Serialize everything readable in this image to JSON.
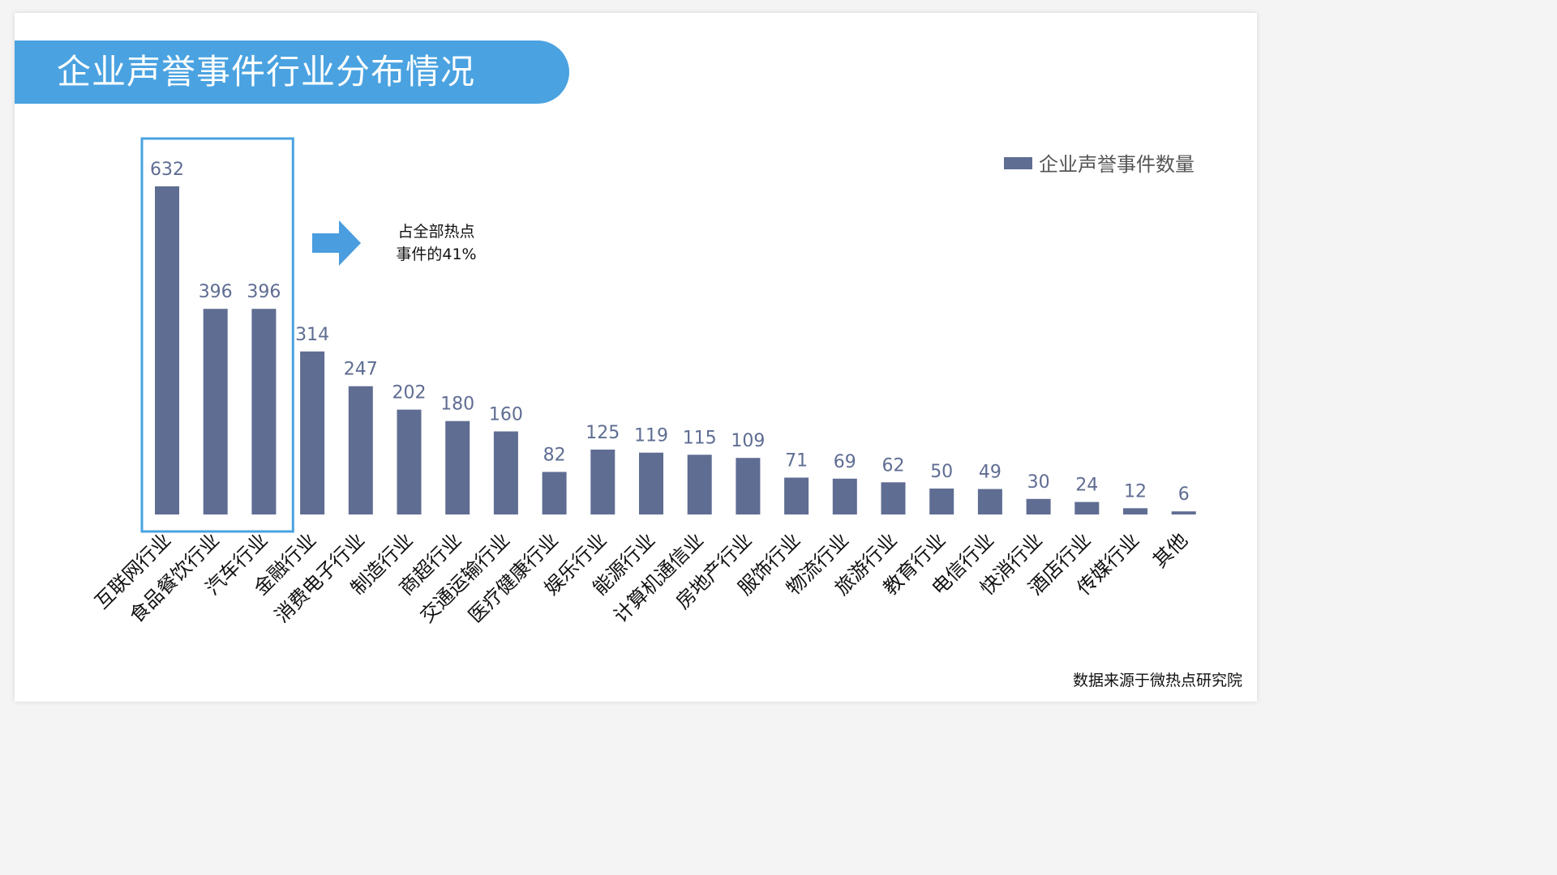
{
  "title": "企业声誉事件行业分布情况",
  "callout": {
    "line1": "占全部热点",
    "line2": "事件的41%"
  },
  "source": "数据来源于微热点研究院",
  "colors": {
    "banner": "#4aa3e0",
    "bar": "#5f6d93",
    "highlight_box": "#4aa3e0",
    "arrow": "#4a9ee0",
    "value_label": "#5f6d93"
  },
  "chart_data": {
    "type": "bar",
    "title": "",
    "xlabel": "",
    "ylabel": "",
    "ylim": [
      0,
      632
    ],
    "grid": false,
    "legend_position": "top-right",
    "categories": [
      "互联网行业",
      "食品餐饮行业",
      "汽车行业",
      "金融行业",
      "消费电子行业",
      "制造行业",
      "商超行业",
      "交通运输行业",
      "医疗健康行业",
      "娱乐行业",
      "能源行业",
      "计算机通信业",
      "房地产行业",
      "服饰行业",
      "物流行业",
      "旅游行业",
      "教育行业",
      "电信行业",
      "快消行业",
      "酒店行业",
      "传媒行业",
      "其他"
    ],
    "series": [
      {
        "name": "企业声誉事件数量",
        "values": [
          632,
          396,
          396,
          314,
          247,
          202,
          180,
          160,
          82,
          125,
          119,
          115,
          109,
          71,
          69,
          62,
          50,
          49,
          30,
          24,
          12,
          6
        ]
      }
    ],
    "highlighted_categories": [
      "互联网行业",
      "食品餐饮行业",
      "汽车行业"
    ]
  }
}
